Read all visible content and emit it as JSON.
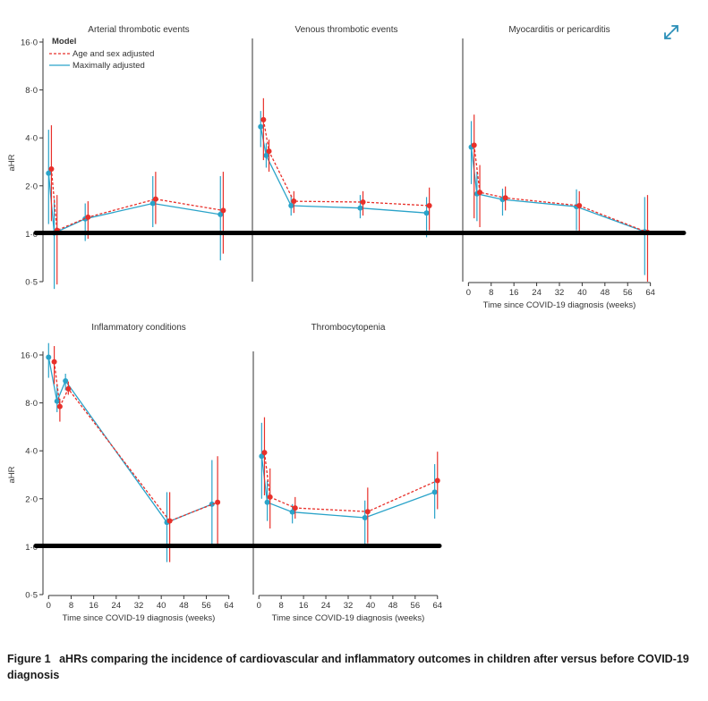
{
  "caption": {
    "label": "Figure 1",
    "text": "aHRs comparing the incidence of cardiovascular and inflammatory outcomes in children after versus before COVID-19 diagnosis"
  },
  "expand_icon": "expand-icon",
  "colors": {
    "age_sex": "#e8302a",
    "maximal": "#2aa3c9",
    "axis": "#333333",
    "reference": "#000000"
  },
  "legend": {
    "title": "Model",
    "entries": [
      "Age and sex adjusted",
      "Maximally adjusted"
    ]
  },
  "chart_data": [
    {
      "type": "line",
      "title": "Arterial thrombotic events",
      "ylabel": "aHR",
      "xlabel": "",
      "yscale": "log2",
      "ylim": [
        0.5,
        16
      ],
      "yticks": [
        0.5,
        1,
        2,
        4,
        8,
        16
      ],
      "ytick_labels": [
        "0·5",
        "1·0",
        "2·0",
        "4·0",
        "8·0",
        "16·0"
      ],
      "xlim": [
        -2,
        66
      ],
      "xticks": [],
      "series": [
        {
          "name": "Age and sex adjusted",
          "x": [
            1,
            3,
            14,
            38,
            62
          ],
          "y": [
            2.55,
            1.05,
            1.27,
            1.65,
            1.4
          ],
          "lower": [
            1.2,
            0.48,
            0.93,
            1.15,
            0.75
          ],
          "upper": [
            4.8,
            1.75,
            1.6,
            2.45,
            2.45
          ]
        },
        {
          "name": "Maximally adjusted",
          "x": [
            0,
            2,
            13,
            37,
            61
          ],
          "y": [
            2.4,
            1.01,
            1.24,
            1.55,
            1.32
          ],
          "lower": [
            1.15,
            0.45,
            0.9,
            1.1,
            0.68
          ],
          "upper": [
            4.5,
            1.65,
            1.55,
            2.3,
            2.3
          ]
        }
      ]
    },
    {
      "type": "line",
      "title": "Venous thrombotic events",
      "ylabel": "",
      "xlabel": "",
      "yscale": "log2",
      "ylim": [
        0.5,
        16
      ],
      "yticks": [],
      "ytick_labels": [],
      "xlim": [
        -2,
        66
      ],
      "xticks": [],
      "series": [
        {
          "name": "Age and sex adjusted",
          "x": [
            2,
            4,
            13,
            38,
            62
          ],
          "y": [
            5.2,
            3.3,
            1.6,
            1.58,
            1.5
          ],
          "lower": [
            2.9,
            2.45,
            1.35,
            1.3,
            1.05
          ],
          "upper": [
            7.1,
            3.9,
            1.85,
            1.85,
            1.95
          ]
        },
        {
          "name": "Maximally adjusted",
          "x": [
            1,
            3,
            12,
            37,
            61
          ],
          "y": [
            4.7,
            3.1,
            1.5,
            1.45,
            1.35
          ],
          "lower": [
            3.5,
            2.6,
            1.3,
            1.25,
            0.95
          ],
          "upper": [
            5.9,
            3.7,
            1.75,
            1.75,
            1.7
          ]
        }
      ]
    },
    {
      "type": "line",
      "title": "Myocarditis or pericarditis",
      "ylabel": "",
      "xlabel": "Time since COVID-19 diagnosis (weeks)",
      "yscale": "log2",
      "ylim": [
        0.5,
        16
      ],
      "yticks": [],
      "ytick_labels": [],
      "xlim": [
        -2,
        66
      ],
      "xticks": [
        0,
        8,
        16,
        24,
        32,
        40,
        48,
        56,
        64
      ],
      "xtick_labels": [
        "0",
        "8",
        "16",
        "24",
        "32",
        "40",
        "48",
        "56",
        "64"
      ],
      "series": [
        {
          "name": "Age and sex adjusted",
          "x": [
            2,
            4,
            13,
            39,
            63
          ],
          "y": [
            3.6,
            1.82,
            1.68,
            1.5,
            1.02
          ],
          "lower": [
            1.25,
            1.1,
            1.4,
            0.98,
            0.5
          ],
          "upper": [
            5.6,
            2.7,
            1.98,
            1.85,
            1.75
          ]
        },
        {
          "name": "Maximally adjusted",
          "x": [
            1,
            3,
            12,
            38,
            62
          ],
          "y": [
            3.5,
            1.78,
            1.64,
            1.48,
            1.03
          ],
          "lower": [
            2.05,
            1.2,
            1.3,
            1.05,
            0.55
          ],
          "upper": [
            5.1,
            2.45,
            1.92,
            1.9,
            1.7
          ]
        }
      ]
    },
    {
      "type": "line",
      "title": "Inflammatory conditions",
      "ylabel": "aHR",
      "xlabel": "Time since COVID-19 diagnosis (weeks)",
      "yscale": "log2",
      "ylim": [
        0.5,
        16
      ],
      "yticks": [
        0.5,
        1,
        2,
        4,
        8,
        16
      ],
      "ytick_labels": [
        "0·5",
        "1·0",
        "2·0",
        "4·0",
        "8·0",
        "16·0"
      ],
      "xlim": [
        -2,
        66
      ],
      "xticks": [
        0,
        8,
        16,
        24,
        32,
        40,
        48,
        56,
        64
      ],
      "xtick_labels": [
        "0",
        "8",
        "16",
        "24",
        "32",
        "40",
        "48",
        "56",
        "64"
      ],
      "series": [
        {
          "name": "Age and sex adjusted",
          "x": [
            2,
            4,
            7,
            43,
            60
          ],
          "y": [
            14.5,
            7.6,
            9.8,
            1.45,
            1.9
          ],
          "lower": [
            10.5,
            6.1,
            9.0,
            0.8,
            1.0
          ],
          "upper": [
            18.2,
            8.5,
            10.9,
            2.2,
            3.7
          ]
        },
        {
          "name": "Maximally adjusted",
          "x": [
            0,
            3,
            6,
            42,
            58
          ],
          "y": [
            15.5,
            8.2,
            11.0,
            1.42,
            1.85
          ],
          "lower": [
            11.5,
            7.0,
            9.6,
            0.8,
            1.0
          ],
          "upper": [
            19.0,
            10.5,
            12.2,
            2.2,
            3.5
          ]
        }
      ]
    },
    {
      "type": "line",
      "title": "Thrombocytopenia",
      "ylabel": "",
      "xlabel": "Time since COVID-19 diagnosis (weeks)",
      "yscale": "log2",
      "ylim": [
        0.5,
        16
      ],
      "yticks": [],
      "ytick_labels": [],
      "xlim": [
        -2,
        66
      ],
      "xticks": [
        0,
        8,
        16,
        24,
        32,
        40,
        48,
        56,
        64
      ],
      "xtick_labels": [
        "0",
        "8",
        "16",
        "24",
        "32",
        "40",
        "48",
        "56",
        "64"
      ],
      "series": [
        {
          "name": "Age and sex adjusted",
          "x": [
            2,
            4,
            13,
            39,
            64
          ],
          "y": [
            3.9,
            2.05,
            1.75,
            1.66,
            2.6
          ],
          "lower": [
            2.1,
            1.3,
            1.5,
            1.05,
            1.72
          ],
          "upper": [
            6.5,
            3.1,
            2.05,
            2.35,
            3.95
          ]
        },
        {
          "name": "Maximally adjusted",
          "x": [
            1,
            3,
            12,
            38,
            63
          ],
          "y": [
            3.7,
            1.9,
            1.65,
            1.52,
            2.2
          ],
          "lower": [
            2.0,
            1.45,
            1.4,
            1.0,
            1.5
          ],
          "upper": [
            6.0,
            2.6,
            1.85,
            1.95,
            3.3
          ]
        }
      ]
    }
  ]
}
